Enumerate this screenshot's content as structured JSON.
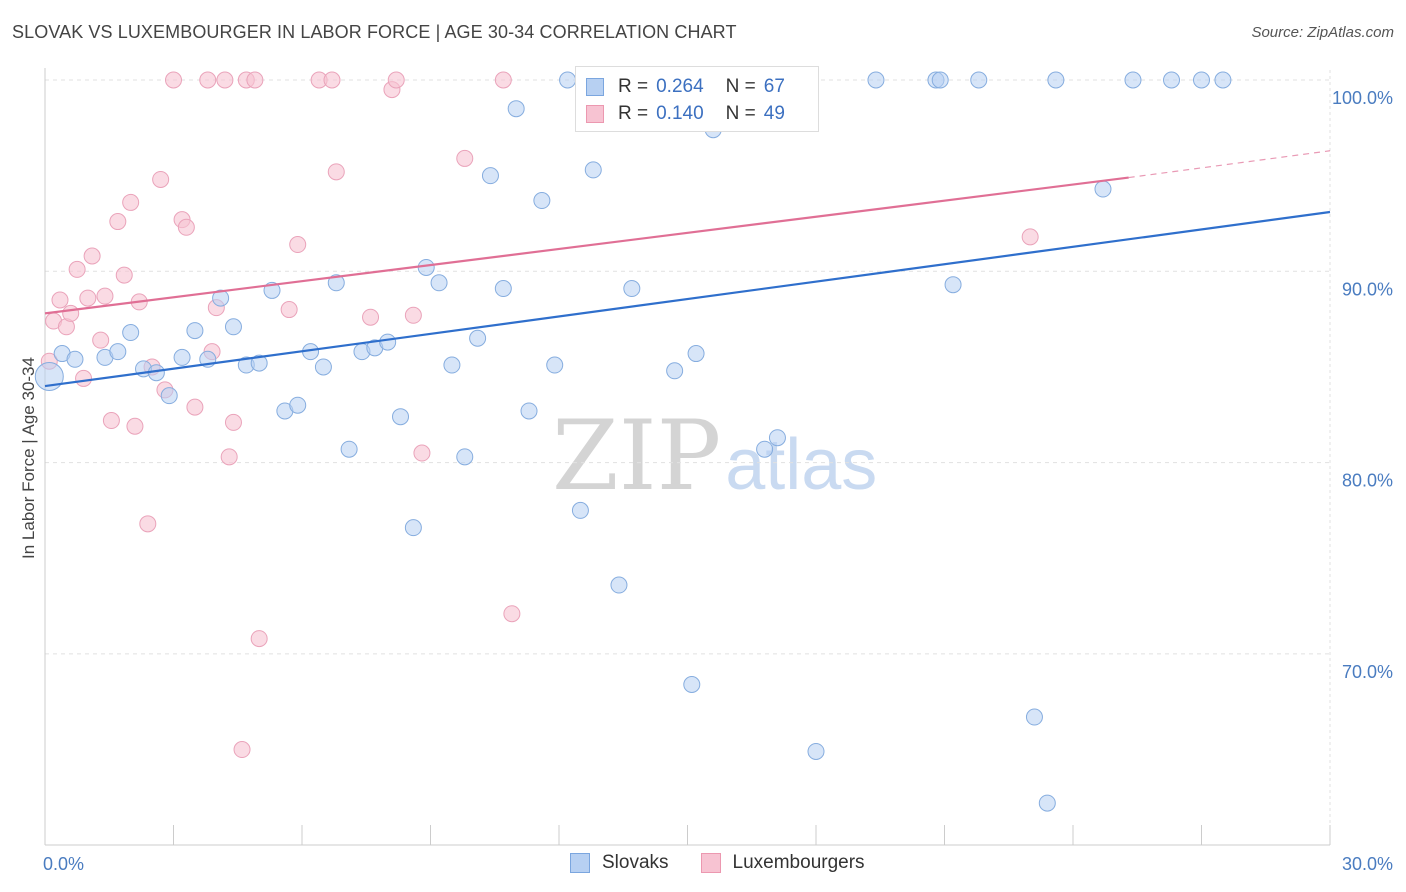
{
  "header": {
    "title": "SLOVAK VS LUXEMBOURGER IN LABOR FORCE | AGE 30-34 CORRELATION CHART",
    "source": "Source: ZipAtlas.com"
  },
  "legend": {
    "series1": {
      "r_label": "R =",
      "r_value": "0.264",
      "n_label": "N =",
      "n_value": "67"
    },
    "series2": {
      "r_label": "R =",
      "r_value": "0.140",
      "n_label": "N =",
      "n_value": "49"
    }
  },
  "bottom_legend": {
    "series1": "Slovaks",
    "series2": "Luxembourgers"
  },
  "watermark": {
    "zip": "ZIP",
    "atlas": "atlas"
  },
  "chart_data": {
    "type": "scatter",
    "title": "SLOVAK VS LUXEMBOURGER IN LABOR FORCE | AGE 30-34 CORRELATION CHART",
    "xlabel": "",
    "ylabel": "In Labor Force | Age 30-34",
    "xlim": [
      0,
      30
    ],
    "ylim": [
      60,
      101.5
    ],
    "x_tick_labels": [
      {
        "value": 0,
        "label": "0.0%"
      },
      {
        "value": 30,
        "label": "30.0%"
      }
    ],
    "y_tick_labels": [
      {
        "value": 100,
        "label": "100.0%"
      },
      {
        "value": 90,
        "label": "90.0%"
      },
      {
        "value": 80,
        "label": "80.0%"
      },
      {
        "value": 70,
        "label": "70.0%"
      }
    ],
    "colors": {
      "Slovaks": "#2f6fcc",
      "Luxembourgers": "#e06f95",
      "Slovaks_fill": "#b7d0f2",
      "Luxembourgers_fill": "#f7c3d2"
    },
    "series": [
      {
        "name": "Slovaks",
        "trend": {
          "x": [
            0,
            30
          ],
          "y": [
            84.0,
            93.1
          ]
        },
        "points": [
          [
            0.1,
            84.5
          ],
          [
            0.4,
            85.7
          ],
          [
            0.7,
            85.4
          ],
          [
            1.4,
            85.5
          ],
          [
            1.7,
            85.8
          ],
          [
            2.0,
            86.8
          ],
          [
            2.3,
            84.9
          ],
          [
            2.6,
            84.7
          ],
          [
            2.9,
            83.5
          ],
          [
            3.2,
            85.5
          ],
          [
            3.5,
            86.9
          ],
          [
            3.8,
            85.4
          ],
          [
            4.1,
            88.6
          ],
          [
            4.4,
            87.1
          ],
          [
            4.7,
            85.1
          ],
          [
            5.0,
            85.2
          ],
          [
            5.3,
            89.0
          ],
          [
            5.6,
            82.7
          ],
          [
            5.9,
            83.0
          ],
          [
            6.2,
            85.8
          ],
          [
            6.5,
            85.0
          ],
          [
            6.8,
            89.4
          ],
          [
            7.1,
            80.7
          ],
          [
            7.4,
            85.8
          ],
          [
            7.7,
            86.0
          ],
          [
            8.0,
            86.3
          ],
          [
            8.3,
            82.4
          ],
          [
            8.6,
            76.6
          ],
          [
            8.9,
            90.2
          ],
          [
            9.2,
            89.4
          ],
          [
            9.5,
            85.1
          ],
          [
            9.8,
            80.3
          ],
          [
            10.1,
            86.5
          ],
          [
            10.4,
            95.0
          ],
          [
            10.7,
            89.1
          ],
          [
            11.0,
            98.5
          ],
          [
            11.3,
            82.7
          ],
          [
            11.6,
            93.7
          ],
          [
            11.9,
            85.1
          ],
          [
            12.2,
            100
          ],
          [
            12.5,
            77.5
          ],
          [
            12.8,
            95.3
          ],
          [
            13.1,
            100
          ],
          [
            13.4,
            73.6
          ],
          [
            13.7,
            89.1
          ],
          [
            14.0,
            100
          ],
          [
            14.7,
            84.8
          ],
          [
            15.1,
            68.4
          ],
          [
            15.2,
            85.7
          ],
          [
            15.6,
            97.4
          ],
          [
            16.0,
            100
          ],
          [
            16.8,
            80.7
          ],
          [
            17.1,
            81.3
          ],
          [
            18.0,
            64.9
          ],
          [
            19.4,
            100
          ],
          [
            20.8,
            100
          ],
          [
            20.9,
            100
          ],
          [
            21.2,
            89.3
          ],
          [
            21.8,
            100
          ],
          [
            23.1,
            66.7
          ],
          [
            23.4,
            62.2
          ],
          [
            23.6,
            100
          ],
          [
            24.7,
            94.3
          ],
          [
            25.4,
            100
          ],
          [
            26.3,
            100
          ],
          [
            27.0,
            100
          ],
          [
            27.5,
            100
          ]
        ]
      },
      {
        "name": "Luxembourgers",
        "trend": {
          "x": [
            0,
            25.3,
            30
          ],
          "y": [
            87.8,
            94.9,
            96.3
          ]
        },
        "points": [
          [
            0.1,
            85.3
          ],
          [
            0.2,
            87.4
          ],
          [
            0.35,
            88.5
          ],
          [
            0.5,
            87.1
          ],
          [
            0.6,
            87.8
          ],
          [
            0.75,
            90.1
          ],
          [
            0.9,
            84.4
          ],
          [
            1.0,
            88.6
          ],
          [
            1.1,
            90.8
          ],
          [
            1.3,
            86.4
          ],
          [
            1.4,
            88.7
          ],
          [
            1.55,
            82.2
          ],
          [
            1.7,
            92.6
          ],
          [
            1.85,
            89.8
          ],
          [
            2.0,
            93.6
          ],
          [
            2.1,
            81.9
          ],
          [
            2.2,
            88.4
          ],
          [
            2.4,
            76.8
          ],
          [
            2.5,
            85.0
          ],
          [
            2.7,
            94.8
          ],
          [
            2.8,
            83.8
          ],
          [
            3.0,
            100
          ],
          [
            3.2,
            92.7
          ],
          [
            3.3,
            92.3
          ],
          [
            3.5,
            82.9
          ],
          [
            3.8,
            100
          ],
          [
            3.9,
            85.8
          ],
          [
            4.0,
            88.1
          ],
          [
            4.2,
            100
          ],
          [
            4.3,
            80.3
          ],
          [
            4.4,
            82.1
          ],
          [
            4.6,
            65.0
          ],
          [
            4.7,
            100
          ],
          [
            4.9,
            100
          ],
          [
            5.0,
            70.8
          ],
          [
            5.7,
            88.0
          ],
          [
            5.9,
            91.4
          ],
          [
            6.4,
            100
          ],
          [
            6.7,
            100
          ],
          [
            6.8,
            95.2
          ],
          [
            7.6,
            87.6
          ],
          [
            8.1,
            99.5
          ],
          [
            8.2,
            100
          ],
          [
            8.6,
            87.7
          ],
          [
            8.8,
            80.5
          ],
          [
            9.8,
            95.9
          ],
          [
            10.7,
            100
          ],
          [
            10.9,
            72.1
          ],
          [
            23.0,
            91.8
          ]
        ]
      }
    ]
  }
}
